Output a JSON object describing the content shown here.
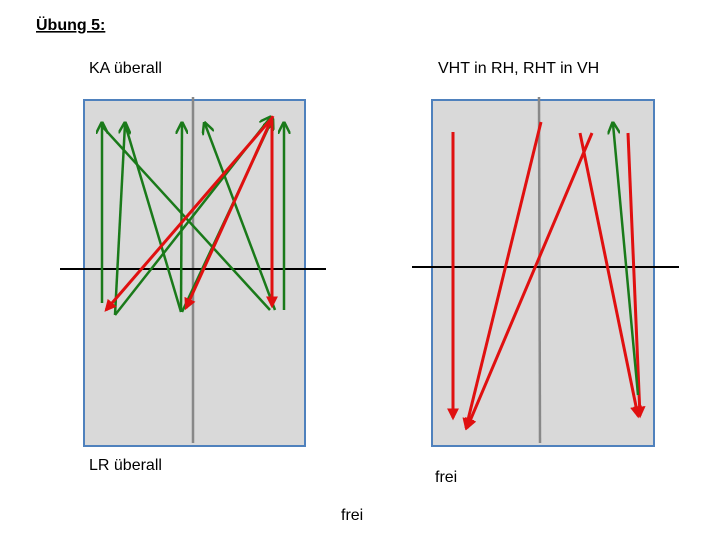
{
  "header": {
    "title": "Übung 5:"
  },
  "left_panel": {
    "top_label": "KA überall",
    "bottom_label": "LR überall"
  },
  "right_panel": {
    "top_label": "VHT in RH, RHT in VH",
    "bottom_label": "frei"
  },
  "footer": {
    "label": "frei"
  }
}
